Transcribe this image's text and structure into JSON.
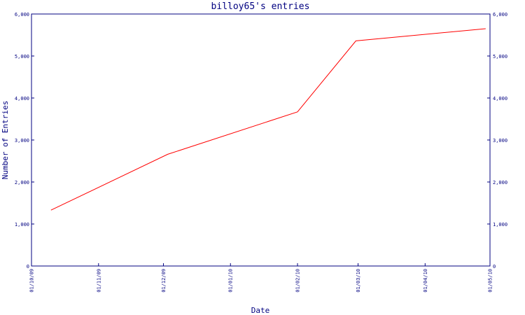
{
  "chart_data": {
    "type": "line",
    "title": "billoy65's entries",
    "xlabel": "Date",
    "ylabel": "Number of Entries",
    "xlim": [
      "2009-10-01",
      "2010-05-01"
    ],
    "ylim": [
      0,
      6000
    ],
    "grid": false,
    "x_ticks": [
      "01/10/09",
      "01/11/09",
      "01/12/09",
      "01/01/10",
      "01/02/10",
      "01/03/10",
      "01/04/10",
      "01/05/10"
    ],
    "y_ticks": [
      "0",
      "1,000",
      "2,000",
      "3,000",
      "4,000",
      "5,000",
      "6,000"
    ],
    "series": [
      {
        "color": "#ff0000",
        "x": [
          "2009-10-10",
          "2009-12-03",
          "2010-02-01",
          "2010-02-28",
          "2010-04-29"
        ],
        "y": [
          1330,
          2660,
          3670,
          5360,
          5650
        ]
      }
    ]
  }
}
